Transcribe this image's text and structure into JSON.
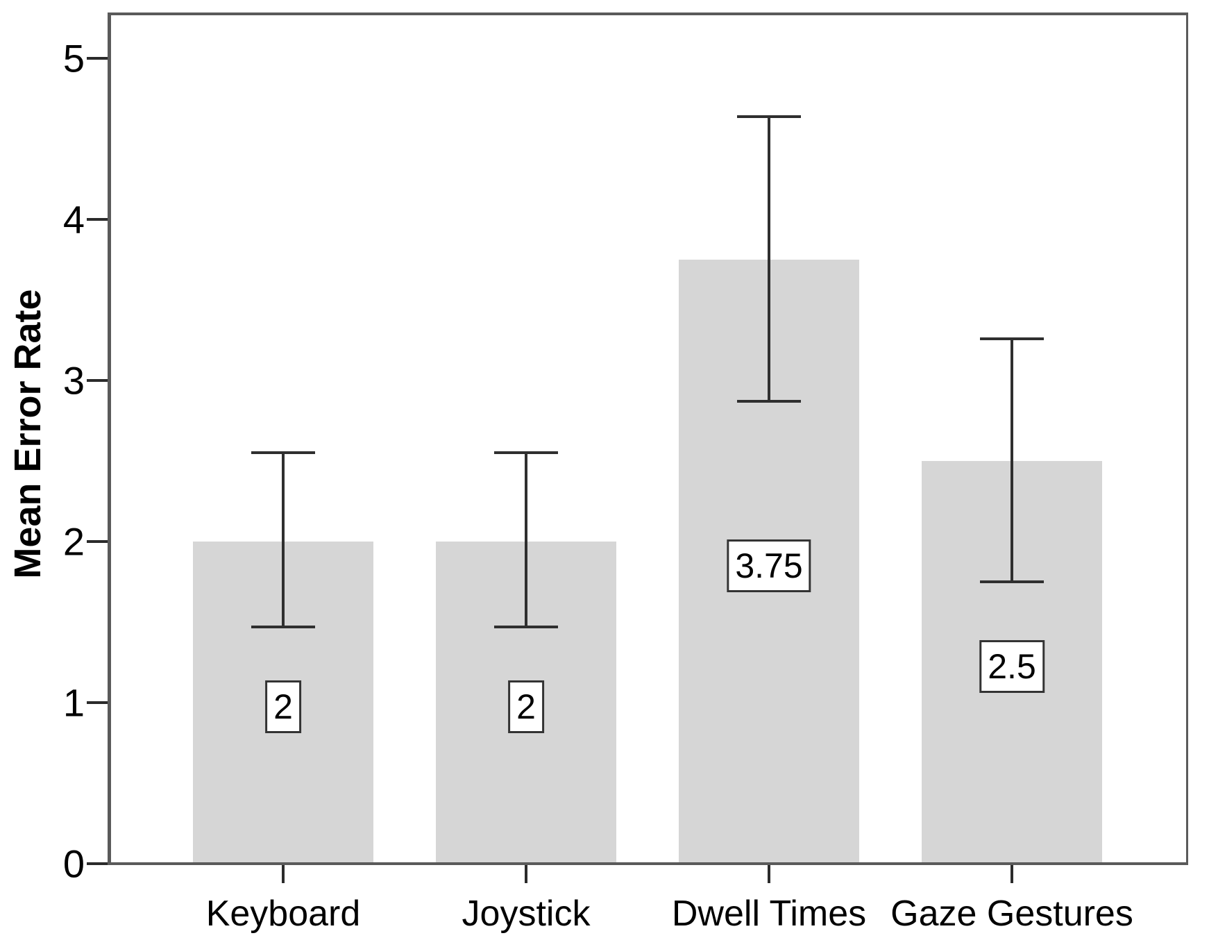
{
  "chart_data": {
    "type": "bar",
    "title": "",
    "xlabel": "",
    "ylabel": "Mean Error Rate",
    "categories": [
      "Keyboard",
      "Joystick",
      "Dwell Times",
      "Gaze Gestures"
    ],
    "values": [
      2,
      2,
      3.75,
      2.5
    ],
    "value_labels": [
      "2",
      "2",
      "3.75",
      "2.5"
    ],
    "error_low": [
      1.47,
      1.47,
      2.87,
      1.75
    ],
    "error_high": [
      2.55,
      2.55,
      4.64,
      3.26
    ],
    "ylim": [
      0,
      5
    ],
    "yticks": [
      "0",
      "1",
      "2",
      "3",
      "4",
      "5"
    ],
    "grid": false,
    "legend_position": "none"
  },
  "colors": {
    "bar_fill": "#d6d6d6",
    "frame": "#5a5a5a",
    "error_bar": "#2f2f2f",
    "tick_mark": "#2b2b2b",
    "text": "#000000",
    "label_box_bg": "#ffffff",
    "label_box_border": "#333333"
  }
}
